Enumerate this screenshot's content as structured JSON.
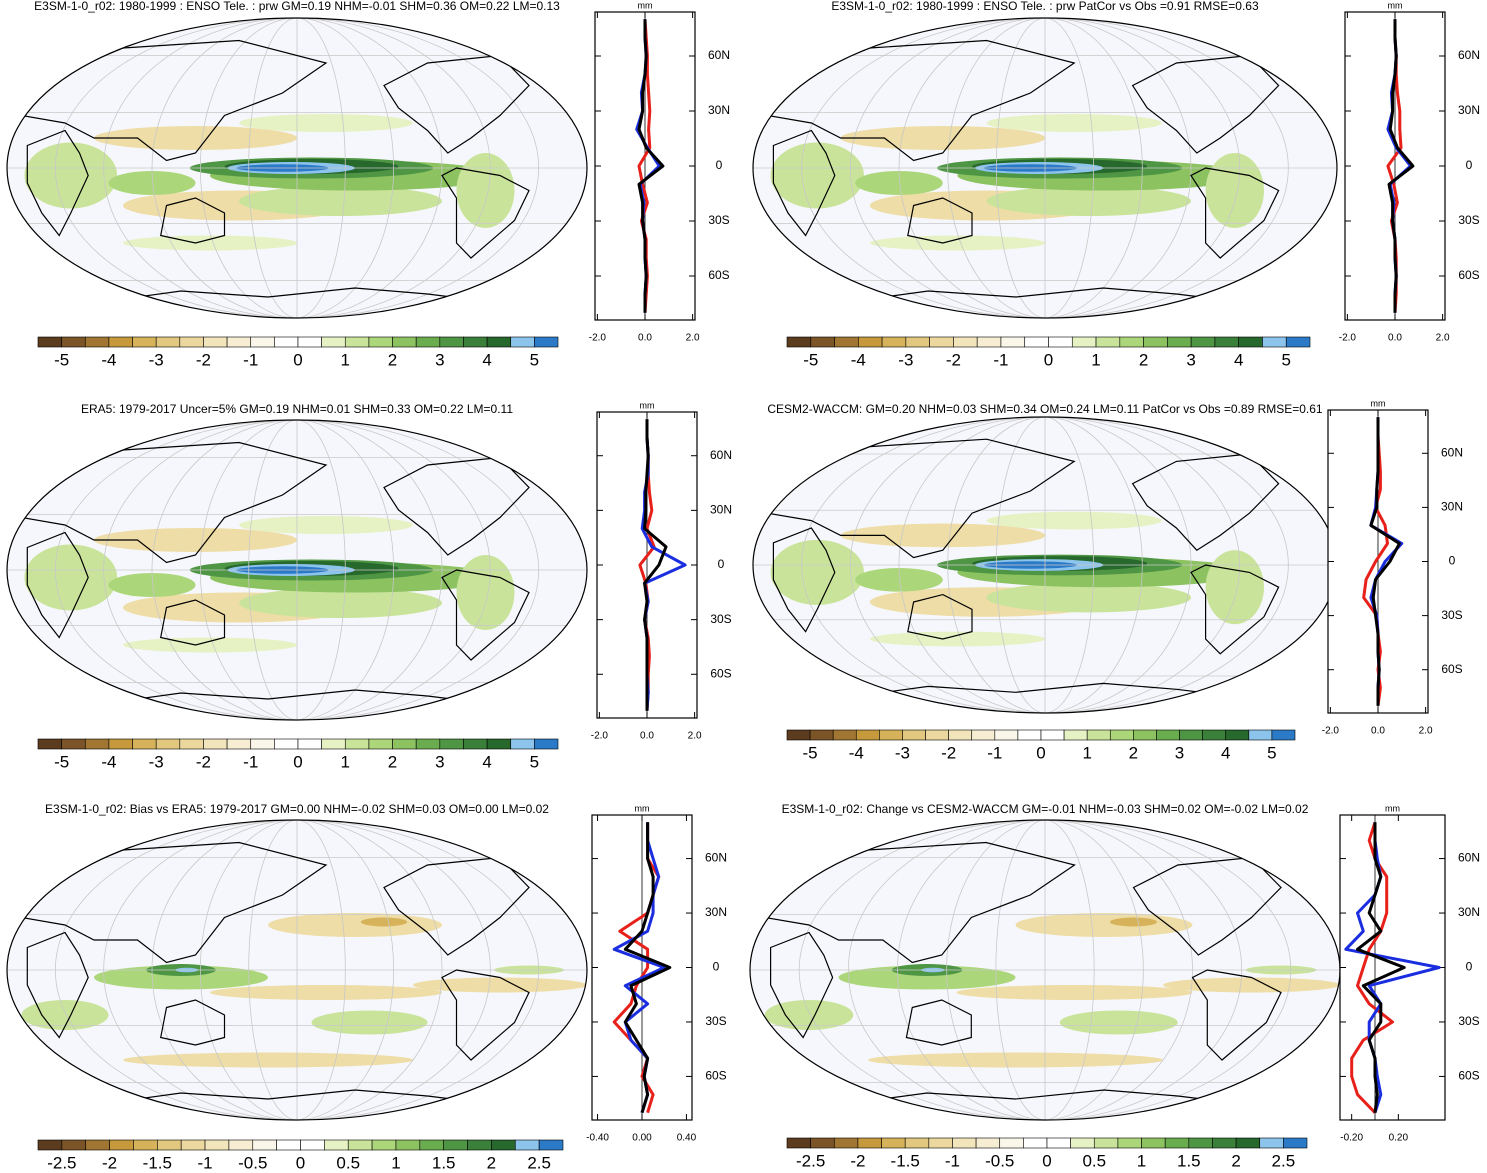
{
  "chart_data": [
    {
      "type": "map",
      "title": "E3SM-1-0_r02: 1980-1999 : ENSO Tele. : prw GM=0.19 NHM=-0.01 SHM=0.36 OM=0.22 LM=0.13",
      "variant": "enso",
      "colorbar": {
        "clim": [
          -5.5,
          5.5
        ],
        "ticks": [
          -5,
          -4,
          -3,
          -2,
          -1,
          0,
          1,
          2,
          3,
          4,
          5
        ],
        "colors": [
          "#5c3c1e",
          "#7b5427",
          "#a07632",
          "#c69a3c",
          "#d6b35a",
          "#e2c77e",
          "#ecd89e",
          "#f2e4bb",
          "#f6edd3",
          "#faf6ea",
          "#ffffff",
          "#ffffff",
          "#e6f2c4",
          "#c9e49a",
          "#acd67a",
          "#8cc260",
          "#6aad4f",
          "#4e9643",
          "#3a803a",
          "#27682c",
          "#8cc4ec",
          "#2b7ac8"
        ]
      }
    },
    {
      "type": "line",
      "xlabel": "mm",
      "xlim": [
        -2.1,
        2.1
      ],
      "xticks": [
        {
          "value": -2,
          "label": "-2.0"
        },
        {
          "value": 0,
          "label": "0.0"
        },
        {
          "value": 2,
          "label": "2.0"
        }
      ],
      "ylim": [
        -84,
        84
      ],
      "yticks": [
        {
          "value": 60,
          "label": "60N"
        },
        {
          "value": 30,
          "label": "30N"
        },
        0,
        {
          "value": -30,
          "label": "30S"
        },
        {
          "value": -60,
          "label": "60S"
        }
      ],
      "y": [
        -80,
        -70,
        -60,
        -50,
        -40,
        -30,
        -20,
        -10,
        0,
        10,
        20,
        30,
        40,
        50,
        60,
        70,
        80
      ],
      "series": [
        {
          "color": "#e8201a",
          "values": [
            0,
            0.05,
            0.1,
            0.05,
            0.05,
            -0.15,
            0.1,
            -0.1,
            -0.25,
            0.2,
            0.15,
            0.2,
            0.15,
            0.1,
            0.1,
            0.05,
            0
          ]
        },
        {
          "color": "#1a2ee0",
          "values": [
            0,
            0,
            0.05,
            0,
            0,
            -0.1,
            -0.05,
            -0.2,
            0.6,
            0.1,
            -0.35,
            -0.1,
            -0.15,
            0,
            0.05,
            0,
            0
          ]
        },
        {
          "color": "#000000",
          "values": [
            0,
            0,
            0.05,
            0,
            0,
            -0.1,
            -0.1,
            -0.25,
            0.75,
            0.05,
            -0.25,
            -0.1,
            -0.1,
            0,
            0.05,
            0,
            0
          ]
        }
      ]
    },
    {
      "type": "map",
      "title": "E3SM-1-0_r02: 1980-1999 : ENSO Tele. : prw PatCor vs Obs =0.91 RMSE=0.63",
      "variant": "enso",
      "colorbar": {
        "clim": [
          -5.5,
          5.5
        ],
        "ticks": [
          -5,
          -4,
          -3,
          -2,
          -1,
          0,
          1,
          2,
          3,
          4,
          5
        ],
        "colors": [
          "#5c3c1e",
          "#7b5427",
          "#a07632",
          "#c69a3c",
          "#d6b35a",
          "#e2c77e",
          "#ecd89e",
          "#f2e4bb",
          "#f6edd3",
          "#faf6ea",
          "#ffffff",
          "#ffffff",
          "#e6f2c4",
          "#c9e49a",
          "#acd67a",
          "#8cc260",
          "#6aad4f",
          "#4e9643",
          "#3a803a",
          "#27682c",
          "#8cc4ec",
          "#2b7ac8"
        ]
      }
    },
    {
      "type": "line",
      "xlabel": "mm",
      "xlim": [
        -2.1,
        2.1
      ],
      "xticks": [
        {
          "value": -2,
          "label": "-2.0"
        },
        {
          "value": 0,
          "label": "0.0"
        },
        {
          "value": 2,
          "label": "2.0"
        }
      ],
      "ylim": [
        -84,
        84
      ],
      "yticks": [
        {
          "value": 60,
          "label": "60N"
        },
        {
          "value": 30,
          "label": "30N"
        },
        0,
        {
          "value": -30,
          "label": "30S"
        },
        {
          "value": -60,
          "label": "60S"
        }
      ],
      "y": [
        -80,
        -70,
        -60,
        -50,
        -40,
        -30,
        -20,
        -10,
        0,
        10,
        20,
        30,
        40,
        50,
        60,
        70,
        80
      ],
      "series": [
        {
          "color": "#e8201a",
          "values": [
            0,
            0.05,
            0.05,
            0.05,
            0,
            -0.15,
            0.1,
            -0.05,
            -0.3,
            0.25,
            0.2,
            0.2,
            0.1,
            0.05,
            0.05,
            0,
            0
          ]
        },
        {
          "color": "#1a2ee0",
          "values": [
            0,
            0,
            0.05,
            0,
            0,
            -0.1,
            -0.05,
            -0.2,
            0.65,
            0.05,
            -0.3,
            -0.1,
            -0.15,
            0,
            0.05,
            0,
            0
          ]
        },
        {
          "color": "#000000",
          "values": [
            0,
            0,
            0.05,
            0,
            0,
            -0.1,
            -0.1,
            -0.25,
            0.75,
            0.1,
            -0.2,
            -0.1,
            -0.1,
            0,
            0.05,
            0,
            0
          ]
        }
      ]
    },
    {
      "type": "map",
      "title": "ERA5: 1979-2017 Uncer=5% GM=0.19 NHM=0.01 SHM=0.33 OM=0.22 LM=0.11",
      "variant": "enso",
      "colorbar": {
        "clim": [
          -5.5,
          5.5
        ],
        "ticks": [
          -5,
          -4,
          -3,
          -2,
          -1,
          0,
          1,
          2,
          3,
          4,
          5
        ],
        "colors": [
          "#5c3c1e",
          "#7b5427",
          "#a07632",
          "#c69a3c",
          "#d6b35a",
          "#e2c77e",
          "#ecd89e",
          "#f2e4bb",
          "#f6edd3",
          "#faf6ea",
          "#ffffff",
          "#ffffff",
          "#e6f2c4",
          "#c9e49a",
          "#acd67a",
          "#8cc260",
          "#6aad4f",
          "#4e9643",
          "#3a803a",
          "#27682c",
          "#8cc4ec",
          "#2b7ac8"
        ]
      }
    },
    {
      "type": "line",
      "xlabel": "mm",
      "xlim": [
        -2.1,
        2.1
      ],
      "xticks": [
        {
          "value": -2,
          "label": "-2.0"
        },
        {
          "value": 0,
          "label": "0.0"
        },
        {
          "value": 2,
          "label": "2.0"
        }
      ],
      "ylim": [
        -84,
        84
      ],
      "yticks": [
        {
          "value": 60,
          "label": "60N"
        },
        {
          "value": 30,
          "label": "30N"
        },
        0,
        {
          "value": -30,
          "label": "30S"
        },
        {
          "value": -60,
          "label": "60S"
        }
      ],
      "y": [
        -80,
        -70,
        -60,
        -50,
        -40,
        -30,
        -20,
        -10,
        0,
        10,
        20,
        30,
        40,
        50,
        60,
        70,
        80
      ],
      "series": [
        {
          "color": "#e8201a",
          "values": [
            0,
            0.05,
            0.05,
            0.1,
            0.05,
            -0.1,
            0.05,
            -0.05,
            -0.3,
            0.3,
            0,
            0.2,
            0.1,
            0.05,
            0.05,
            0,
            0
          ]
        },
        {
          "color": "#1a2ee0",
          "values": [
            0,
            0.05,
            0,
            0,
            0,
            -0.1,
            0.05,
            -0.1,
            1.6,
            0.2,
            -0.2,
            -0.1,
            -0.1,
            0.05,
            0.05,
            0,
            0
          ]
        },
        {
          "color": "#000000",
          "values": [
            0,
            0,
            0,
            0,
            0,
            -0.1,
            0,
            -0.1,
            0.5,
            0.8,
            -0.1,
            -0.05,
            -0.05,
            0,
            0.05,
            0,
            0
          ]
        }
      ]
    },
    {
      "type": "map",
      "title": "CESM2-WACCM: GM=0.20 NHM=0.03 SHM=0.34 OM=0.24 LM=0.11 PatCor vs Obs =0.89 RMSE=0.61",
      "variant": "enso",
      "colorbar": {
        "clim": [
          -5.5,
          5.5
        ],
        "ticks": [
          -5,
          -4,
          -3,
          -2,
          -1,
          0,
          1,
          2,
          3,
          4,
          5
        ],
        "colors": [
          "#5c3c1e",
          "#7b5427",
          "#a07632",
          "#c69a3c",
          "#d6b35a",
          "#e2c77e",
          "#ecd89e",
          "#f2e4bb",
          "#f6edd3",
          "#faf6ea",
          "#ffffff",
          "#ffffff",
          "#e6f2c4",
          "#c9e49a",
          "#acd67a",
          "#8cc260",
          "#6aad4f",
          "#4e9643",
          "#3a803a",
          "#27682c",
          "#8cc4ec",
          "#2b7ac8"
        ]
      }
    },
    {
      "type": "line",
      "xlabel": "mm",
      "xlim": [
        -2.1,
        2.1
      ],
      "xticks": [
        {
          "value": -2,
          "label": "-2.0"
        },
        {
          "value": 0,
          "label": "0.0"
        },
        {
          "value": 2,
          "label": "2.0"
        }
      ],
      "ylim": [
        -84,
        84
      ],
      "yticks": [
        {
          "value": 60,
          "label": "60N"
        },
        {
          "value": 30,
          "label": "30N"
        },
        0,
        {
          "value": -30,
          "label": "30S"
        },
        {
          "value": -60,
          "label": "60S"
        }
      ],
      "y": [
        -80,
        -70,
        -60,
        -50,
        -40,
        -30,
        -20,
        -10,
        0,
        10,
        20,
        30,
        40,
        50,
        60,
        70,
        80
      ],
      "series": [
        {
          "color": "#e8201a",
          "values": [
            0,
            0.1,
            0,
            0.1,
            0,
            -0.05,
            -0.6,
            -0.5,
            -0.1,
            0.4,
            0.3,
            -0.1,
            0.1,
            0.1,
            0.05,
            0,
            0
          ]
        },
        {
          "color": "#1a2ee0",
          "values": [
            0,
            0,
            0.05,
            0,
            0,
            -0.05,
            -0.3,
            -0.1,
            0.3,
            1.0,
            -0.3,
            -0.1,
            -0.05,
            0,
            0,
            0,
            0
          ]
        },
        {
          "color": "#000000",
          "values": [
            0,
            0,
            0.05,
            0,
            0,
            -0.1,
            -0.2,
            -0.1,
            0.5,
            0.9,
            -0.3,
            -0.05,
            -0.05,
            0,
            0,
            0,
            0
          ]
        }
      ]
    },
    {
      "type": "map",
      "title": "E3SM-1-0_r02: Bias vs ERA5: 1979-2017 GM=0.00 NHM=-0.02 SHM=0.03 OM=0.00 LM=0.02",
      "variant": "diff",
      "colorbar": {
        "clim": [
          -2.75,
          2.75
        ],
        "ticks": [
          -2.5,
          -2,
          -1.5,
          -1,
          -0.5,
          0,
          0.5,
          1,
          1.5,
          2,
          2.5
        ],
        "colors": [
          "#5c3c1e",
          "#7b5427",
          "#a07632",
          "#c69a3c",
          "#d6b35a",
          "#e2c77e",
          "#ecd89e",
          "#f2e4bb",
          "#f6edd3",
          "#faf6ea",
          "#ffffff",
          "#ffffff",
          "#e6f2c4",
          "#c9e49a",
          "#acd67a",
          "#8cc260",
          "#6aad4f",
          "#4e9643",
          "#3a803a",
          "#27682c",
          "#8cc4ec",
          "#2b7ac8"
        ]
      }
    },
    {
      "type": "line",
      "xlabel": "mm",
      "xlim": [
        -0.45,
        0.45
      ],
      "xticks": [
        {
          "value": -0.4,
          "label": "-0.40"
        },
        {
          "value": 0,
          "label": "0.00"
        },
        {
          "value": 0.4,
          "label": "0.40"
        }
      ],
      "ylim": [
        -84,
        84
      ],
      "yticks": [
        {
          "value": 60,
          "label": "60N"
        },
        {
          "value": 30,
          "label": "30N"
        },
        0,
        {
          "value": -30,
          "label": "30S"
        },
        {
          "value": -60,
          "label": "60S"
        }
      ],
      "y": [
        -80,
        -70,
        -60,
        -50,
        -40,
        -30,
        -20,
        -10,
        0,
        10,
        20,
        30,
        40,
        50,
        60,
        70,
        80
      ],
      "series": [
        {
          "color": "#e8201a",
          "values": [
            0.05,
            0.1,
            0,
            0.05,
            -0.1,
            -0.25,
            -0.1,
            -0.05,
            0.05,
            0.05,
            -0.2,
            0.05,
            0.1,
            0.15,
            0.05,
            0.05,
            0.05
          ]
        },
        {
          "color": "#1a2ee0",
          "values": [
            0,
            0.05,
            0.02,
            0.05,
            -0.1,
            -0.15,
            0.05,
            -0.15,
            0.2,
            -0.25,
            0.05,
            0.1,
            0.1,
            0.15,
            0.1,
            0.05,
            0.05
          ]
        },
        {
          "color": "#000000",
          "values": [
            0,
            0.05,
            0.02,
            0.05,
            -0.05,
            -0.15,
            -0.05,
            -0.1,
            0.25,
            -0.15,
            0,
            0.05,
            0.1,
            0.1,
            0.05,
            0.05,
            0.05
          ]
        }
      ]
    },
    {
      "type": "map",
      "title": "E3SM-1-0_r02: Change vs CESM2-WACCM GM=-0.01 NHM=-0.03 SHM=0.02 OM=-0.02 LM=0.02",
      "variant": "diff",
      "colorbar": {
        "clim": [
          -2.75,
          2.75
        ],
        "ticks": [
          -2.5,
          -2,
          -1.5,
          -1,
          -0.5,
          0,
          0.5,
          1,
          1.5,
          2,
          2.5
        ],
        "colors": [
          "#5c3c1e",
          "#7b5427",
          "#a07632",
          "#c69a3c",
          "#d6b35a",
          "#e2c77e",
          "#ecd89e",
          "#f2e4bb",
          "#f6edd3",
          "#faf6ea",
          "#ffffff",
          "#ffffff",
          "#e6f2c4",
          "#c9e49a",
          "#acd67a",
          "#8cc260",
          "#6aad4f",
          "#4e9643",
          "#3a803a",
          "#27682c",
          "#8cc4ec",
          "#2b7ac8"
        ]
      }
    },
    {
      "type": "line",
      "xlabel": "mm",
      "xlim": [
        -0.3,
        0.6
      ],
      "xticks": [
        {
          "value": -0.2,
          "label": "-0.20"
        },
        {
          "value": 0.2,
          "label": "0.20"
        }
      ],
      "ylim": [
        -84,
        84
      ],
      "yticks": [
        {
          "value": 60,
          "label": "60N"
        },
        {
          "value": 30,
          "label": "30N"
        },
        0,
        {
          "value": -30,
          "label": "30S"
        },
        {
          "value": -60,
          "label": "60S"
        }
      ],
      "y": [
        -80,
        -70,
        -60,
        -50,
        -40,
        -30,
        -20,
        -10,
        0,
        10,
        20,
        30,
        40,
        50,
        60,
        70,
        80
      ],
      "series": [
        {
          "color": "#e8201a",
          "values": [
            0,
            -0.15,
            -0.2,
            -0.2,
            -0.1,
            0.15,
            -0.05,
            -0.15,
            -0.1,
            -0.05,
            0.05,
            0.1,
            0.1,
            0.1,
            0,
            -0.05,
            0
          ]
        },
        {
          "color": "#1a2ee0",
          "values": [
            0,
            0.05,
            0.02,
            0,
            -0.05,
            -0.05,
            0.05,
            -0.05,
            0.55,
            -0.25,
            -0.1,
            -0.15,
            0,
            0.05,
            0.02,
            0,
            0
          ]
        },
        {
          "color": "#000000",
          "values": [
            0,
            0.02,
            0,
            0,
            -0.05,
            0.05,
            0.05,
            -0.1,
            0.25,
            -0.15,
            0.05,
            -0.05,
            0,
            0.05,
            0,
            0,
            0
          ]
        }
      ]
    }
  ]
}
